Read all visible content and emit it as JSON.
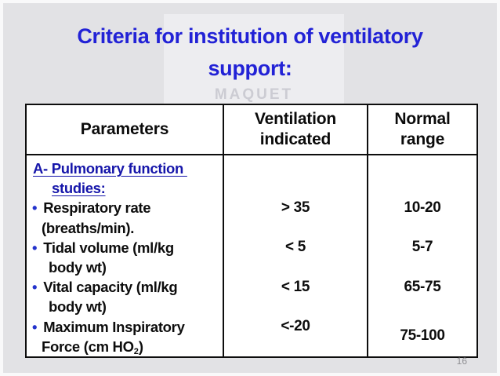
{
  "slide": {
    "title_line1": "Criteria for institution of ventilatory",
    "title_line2": "support:",
    "watermark_text": "MAQUET",
    "page_number": "16"
  },
  "table": {
    "headers": {
      "parameters": "Parameters",
      "ventilation": "Ventilation indicated",
      "normal": "Normal range"
    },
    "section": {
      "line1": "A- Pulmonary function ",
      "line2": "studies:"
    },
    "bullet": "•",
    "rows": [
      {
        "param_line1": "Respiratory rate",
        "param_line2": "(breaths/min).",
        "ventilation": "> 35",
        "normal": "10-20"
      },
      {
        "param_line1": "Tidal volume (ml/kg",
        "param_line2": "body wt)",
        "ventilation": "< 5",
        "normal": "5-7"
      },
      {
        "param_line1": "Vital capacity (ml/kg",
        "param_line2": "body wt)",
        "ventilation": "< 15",
        "normal": "65-75"
      },
      {
        "param_line1": "Maximum Inspiratory",
        "param_line2_prefix": "Force (cm HO",
        "param_line2_sub": "2",
        "param_line2_suffix": ")",
        "ventilation": "<-20",
        "normal": "75-100"
      }
    ]
  },
  "colors": {
    "title_blue": "#2222d6",
    "heading_blue": "#1616aa",
    "bullet_blue": "#2433cc",
    "slide_bg": "#e2e2e5",
    "table_border": "#0d0d0d",
    "page_number_gray": "#8f8f93"
  }
}
